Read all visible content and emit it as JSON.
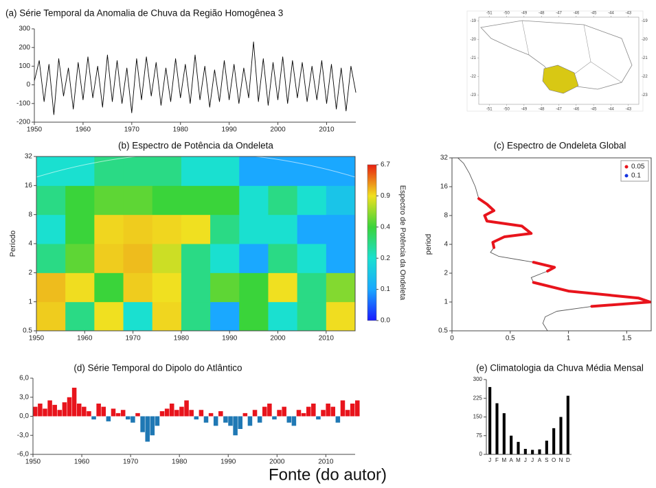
{
  "caption": "Fonte (do autor)",
  "chart_data": [
    {
      "type": "line",
      "title": "(a) Série Temporal da Anomalia de Chuva da Região Homogênea 3",
      "x": [
        1950,
        1951,
        1952,
        1953,
        1954,
        1955,
        1956,
        1957,
        1958,
        1959,
        1960,
        1961,
        1962,
        1963,
        1964,
        1965,
        1966,
        1967,
        1968,
        1969,
        1970,
        1971,
        1972,
        1973,
        1974,
        1975,
        1976,
        1977,
        1978,
        1979,
        1980,
        1981,
        1982,
        1983,
        1984,
        1985,
        1986,
        1987,
        1988,
        1989,
        1990,
        1991,
        1992,
        1993,
        1994,
        1995,
        1996,
        1997,
        1998,
        1999,
        2000,
        2001,
        2002,
        2003,
        2004,
        2005,
        2006,
        2007,
        2008,
        2009,
        2010,
        2011,
        2012,
        2013,
        2014,
        2015,
        2016
      ],
      "series": [
        {
          "color": "#000000",
          "values": [
            20,
            130,
            -90,
            110,
            -160,
            140,
            -60,
            90,
            -130,
            120,
            -80,
            150,
            -70,
            100,
            -120,
            160,
            -90,
            130,
            -100,
            90,
            -150,
            140,
            -80,
            150,
            -60,
            120,
            -110,
            90,
            -90,
            140,
            -70,
            110,
            -100,
            160,
            -80,
            100,
            -120,
            80,
            -90,
            130,
            -80,
            110,
            -100,
            90,
            -70,
            230,
            -90,
            140,
            -110,
            120,
            -80,
            150,
            -100,
            130,
            -70,
            120,
            -90,
            100,
            -80,
            130,
            -100,
            110,
            -130,
            90,
            -140,
            100,
            -40
          ]
        }
      ],
      "xlim": [
        1950,
        2016
      ],
      "xticks": [
        1950,
        1960,
        1970,
        1980,
        1990,
        2000,
        2010
      ],
      "ylim": [
        -200,
        300
      ],
      "yticks": [
        -200,
        -100,
        0,
        100,
        200,
        300
      ]
    },
    {
      "type": "map",
      "highlight_color": "#d8c814",
      "xlim": [
        -51.6,
        -42.4
      ],
      "xticks": [
        -51,
        -50,
        -49,
        -48,
        -47,
        -46,
        -45,
        -44,
        -43
      ],
      "ylim": [
        -23.5,
        -18.8
      ],
      "yticks": [
        -19,
        -20,
        -21,
        -22,
        -23
      ]
    },
    {
      "type": "heatmap",
      "title": "(b) Espectro de Potência da Ondeleta",
      "ylabel": "Período",
      "colorbar_label": "Espectro de Potência da Ondeleta",
      "xbins": [
        1950,
        1956,
        1962,
        1968,
        1974,
        1980,
        1986,
        1992,
        1998,
        2004,
        2010,
        2016
      ],
      "ybins": [
        0.5,
        1,
        2,
        4,
        8,
        16,
        32
      ],
      "z": [
        [
          1.5,
          0.3,
          0.9,
          0.2,
          1.2,
          0.3,
          0.1,
          0.4,
          0.2,
          0.3,
          1.0
        ],
        [
          2.0,
          1.0,
          0.4,
          1.5,
          0.9,
          0.3,
          0.5,
          0.4,
          0.9,
          0.3,
          0.6
        ],
        [
          0.3,
          0.5,
          1.5,
          2.0,
          0.8,
          0.3,
          0.2,
          0.1,
          0.3,
          0.2,
          0.1
        ],
        [
          0.2,
          0.4,
          1.2,
          1.5,
          1.2,
          0.9,
          0.3,
          0.2,
          0.2,
          0.1,
          0.1
        ],
        [
          0.3,
          0.4,
          0.5,
          0.5,
          0.4,
          0.4,
          0.4,
          0.2,
          0.3,
          0.2,
          0.15
        ],
        [
          0.2,
          0.2,
          0.3,
          0.3,
          0.3,
          0.2,
          0.2,
          0.1,
          0.1,
          0.1,
          0.1
        ]
      ],
      "xlim": [
        1950,
        2016
      ],
      "xticks": [
        1950,
        1960,
        1970,
        1980,
        1990,
        2000,
        2010
      ],
      "ylim": [
        0.5,
        32
      ],
      "ylog": true,
      "yticks": [
        0.5,
        1,
        2,
        4,
        8,
        16,
        32
      ],
      "colorbar_ticks": [
        {
          "value": 0,
          "label": "0.0"
        },
        0.1,
        0.2,
        0.4,
        0.9,
        6.7
      ],
      "colorscale": [
        "#1a1aff",
        "#1aa8ff",
        "#1ae0d0",
        "#3ad43a",
        "#f0e020",
        "#e82010"
      ]
    },
    {
      "type": "line",
      "title": "(c) Espectro de Ondeleta Global",
      "ylabel": "period",
      "x": [
        0.82,
        0.78,
        0.8,
        0.9,
        1.2,
        1.7,
        1.6,
        1.0,
        0.7,
        0.68,
        0.82,
        0.88,
        0.7,
        0.4,
        0.33,
        0.36,
        0.35,
        0.45,
        0.68,
        0.6,
        0.3,
        0.28,
        0.36,
        0.3,
        0.23,
        0.2,
        0.15,
        0.1,
        0.05
      ],
      "series": [
        {
          "color": "#555555",
          "values": [
            0.5,
            0.6,
            0.7,
            0.8,
            0.9,
            1.0,
            1.1,
            1.3,
            1.6,
            1.8,
            2.1,
            2.3,
            2.6,
            3.0,
            3.3,
            3.7,
            4.2,
            4.8,
            5.2,
            6.2,
            7.0,
            8.0,
            9.0,
            10.5,
            12,
            16,
            22,
            28,
            32
          ]
        },
        {
          "name": "0.05",
          "color": "#e8141c",
          "values": [
            null,
            null,
            null,
            null,
            0.9,
            1.0,
            1.1,
            1.3,
            1.6,
            null,
            2.1,
            2.3,
            2.6,
            null,
            null,
            3.7,
            4.2,
            4.8,
            5.2,
            6.2,
            7.0,
            8.0,
            9.0,
            10.5,
            12,
            null,
            null,
            null,
            null
          ]
        },
        {
          "name": "0.1",
          "color": "#1432e0",
          "values": [
            null,
            null,
            null,
            null,
            null,
            null,
            null,
            null,
            null,
            null,
            null,
            null,
            null,
            null,
            null,
            null,
            null,
            null,
            null,
            null,
            null,
            null,
            null,
            null,
            null,
            null,
            null,
            null,
            null
          ]
        }
      ],
      "xlim": [
        0,
        1.71
      ],
      "xticks": [
        0,
        0.5,
        1,
        1.5
      ],
      "ylim": [
        0.5,
        32
      ],
      "ylog": true,
      "yticks": [
        0.5,
        1,
        2,
        4,
        8,
        16,
        32
      ],
      "legend": "upper right"
    },
    {
      "type": "bar",
      "title": "(d) Série Temporal do Dipolo do Atlântico",
      "x": [
        1950,
        1951,
        1952,
        1953,
        1954,
        1955,
        1956,
        1957,
        1958,
        1959,
        1960,
        1961,
        1962,
        1963,
        1964,
        1965,
        1966,
        1967,
        1968,
        1969,
        1970,
        1971,
        1972,
        1973,
        1974,
        1975,
        1976,
        1977,
        1978,
        1979,
        1980,
        1981,
        1982,
        1983,
        1984,
        1985,
        1986,
        1987,
        1988,
        1989,
        1990,
        1991,
        1992,
        1993,
        1994,
        1995,
        1996,
        1997,
        1998,
        1999,
        2000,
        2001,
        2002,
        2003,
        2004,
        2005,
        2006,
        2007,
        2008,
        2009,
        2010,
        2011,
        2012,
        2013,
        2014,
        2015,
        2016
      ],
      "values": [
        1.5,
        2.0,
        1.2,
        2.5,
        1.8,
        1.0,
        2.2,
        3.0,
        4.5,
        2.0,
        1.5,
        0.8,
        -0.5,
        2.0,
        1.5,
        -0.8,
        1.2,
        0.5,
        1.0,
        -0.5,
        -1.0,
        0.5,
        -2.5,
        -4.0,
        -3.0,
        -1.5,
        0.8,
        1.2,
        2.0,
        1.0,
        1.5,
        2.5,
        1.0,
        -0.5,
        1.0,
        -1.0,
        0.5,
        -1.5,
        0.8,
        -1.0,
        -1.5,
        -3.0,
        -2.0,
        0.5,
        -1.5,
        1.0,
        -1.0,
        1.5,
        2.0,
        -0.5,
        1.0,
        1.5,
        -1.0,
        -1.5,
        1.0,
        0.5,
        1.5,
        2.0,
        -0.5,
        1.0,
        2.0,
        1.5,
        -1.0,
        2.5,
        1.0,
        2.0,
        2.5
      ],
      "positive_color": "#e8141c",
      "negative_color": "#1f78b4",
      "xlim": [
        1950,
        2016
      ],
      "xticks": [
        1950,
        1960,
        1970,
        1980,
        1990,
        2000,
        2010
      ],
      "ylim": [
        -6,
        6
      ],
      "yticks": [
        {
          "value": -6,
          "label": "-6,0"
        },
        {
          "value": -3,
          "label": "-3,0"
        },
        {
          "value": 0,
          "label": "0,0"
        },
        {
          "value": 3,
          "label": "3,0"
        },
        {
          "value": 6,
          "label": "6,0"
        }
      ]
    },
    {
      "type": "bar",
      "title": "(e) Climatologia da Chuva Média Mensal",
      "categories": [
        "J",
        "F",
        "M",
        "A",
        "M",
        "J",
        "J",
        "A",
        "S",
        "O",
        "N",
        "D"
      ],
      "values": [
        270,
        205,
        165,
        75,
        50,
        22,
        18,
        20,
        55,
        105,
        150,
        235
      ],
      "color": "#000000",
      "ylim": [
        0,
        300
      ],
      "yticks": [
        0,
        75,
        150,
        225,
        300
      ]
    }
  ]
}
